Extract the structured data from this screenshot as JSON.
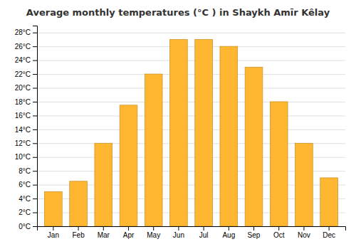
{
  "chart_data": {
    "type": "bar",
    "title": "Average monthly temperatures (°C ) in Shaykh Amīr Kêlay",
    "categories": [
      "Jan",
      "Feb",
      "Mar",
      "Apr",
      "May",
      "Jun",
      "Jul",
      "Aug",
      "Sep",
      "Oct",
      "Nov",
      "Dec"
    ],
    "values": [
      5.0,
      6.5,
      12.0,
      17.5,
      22.0,
      27.0,
      27.0,
      26.0,
      23.0,
      18.0,
      12.0,
      7.0
    ],
    "color": "#FFB732",
    "ylim": [
      0,
      29
    ],
    "yticks": [
      {
        "value": 0,
        "label": "0°C"
      },
      {
        "value": 2,
        "label": "2°C"
      },
      {
        "value": 4,
        "label": "4°C"
      },
      {
        "value": 6,
        "label": "6°C"
      },
      {
        "value": 8,
        "label": "8°C"
      },
      {
        "value": 10,
        "label": "10°C"
      },
      {
        "value": 12,
        "label": "12°C"
      },
      {
        "value": 14,
        "label": "14°C"
      },
      {
        "value": 16,
        "label": "16°C"
      },
      {
        "value": 18,
        "label": "18°C"
      },
      {
        "value": 20,
        "label": "20°C"
      },
      {
        "value": 22,
        "label": "22°C"
      },
      {
        "value": 24,
        "label": "24°C"
      },
      {
        "value": 26,
        "label": "26°C"
      },
      {
        "value": 28,
        "label": "28°C"
      }
    ],
    "grid": true
  }
}
